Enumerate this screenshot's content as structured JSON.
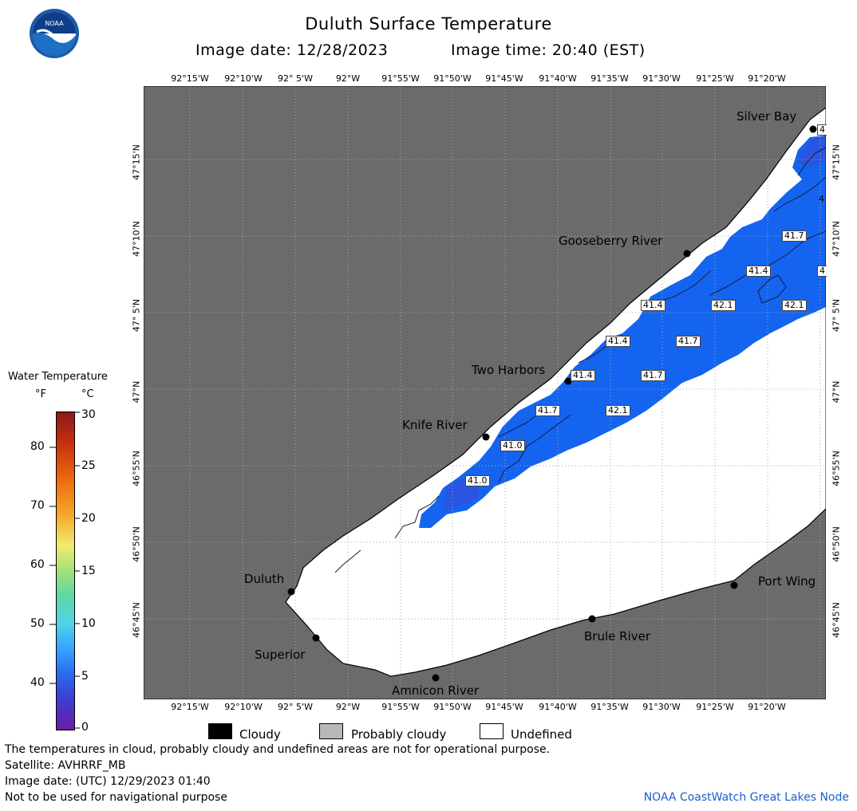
{
  "header": {
    "title": "Duluth Surface Temperature",
    "date_label": "Image date: 12/28/2023",
    "time_label": "Image time: 20:40 (EST)"
  },
  "logo": {
    "text": "NOAA"
  },
  "map": {
    "lon_labels": [
      "92°15'W",
      "92°10'W",
      "92° 5'W",
      "92°W",
      "91°55'W",
      "91°50'W",
      "91°45'W",
      "91°40'W",
      "91°35'W",
      "91°30'W",
      "91°25'W",
      "91°20'W"
    ],
    "lat_labels": [
      "47°15'N",
      "47°10'N",
      "47° 5'N",
      "47°N",
      "46°55'N",
      "46°50'N",
      "46°45'N"
    ],
    "places": {
      "silver_bay": "Silver Bay",
      "gooseberry_river": "Gooseberry River",
      "two_harbors": "Two Harbors",
      "knife_river": "Knife River",
      "duluth": "Duluth",
      "superior": "Superior",
      "amnicon_river": "Amnicon River",
      "brule_river": "Brule River",
      "port_wing": "Port Wing"
    },
    "temperature_labels": [
      "41.7",
      "41.4",
      "4",
      "41.4",
      "42.1",
      "42.1",
      "41.4",
      "41.7",
      "41.4",
      "41.7",
      "41.7",
      "42.1",
      "41.0",
      "41.0",
      "4",
      "4"
    ],
    "colors": {
      "land": "#6b6b6b",
      "undefined": "#ffffff",
      "water_warm": "#1464f0",
      "water_cool": "#2a55e0",
      "grid": "#999999"
    }
  },
  "colorbar": {
    "title": "Water Temperature",
    "unit_f": "°F",
    "unit_c": "°C",
    "f_ticks": [
      "80",
      "70",
      "60",
      "50",
      "40"
    ],
    "c_ticks": [
      "30",
      "25",
      "20",
      "15",
      "10",
      "5",
      "0"
    ]
  },
  "legend": {
    "cloudy": "Cloudy",
    "probably_cloudy": "Probably cloudy",
    "undefined": "Undefined"
  },
  "footer": {
    "disclaimer": "The temperatures in cloud, probably cloudy and undefined areas are not for operational purpose.",
    "satellite": "Satellite: AVHRRF_MB",
    "utc_date": "Image date: (UTC) 12/29/2023  01:40",
    "nav_warning": "Not to be used for navigational purpose",
    "credit": "NOAA CoastWatch Great Lakes Node"
  }
}
